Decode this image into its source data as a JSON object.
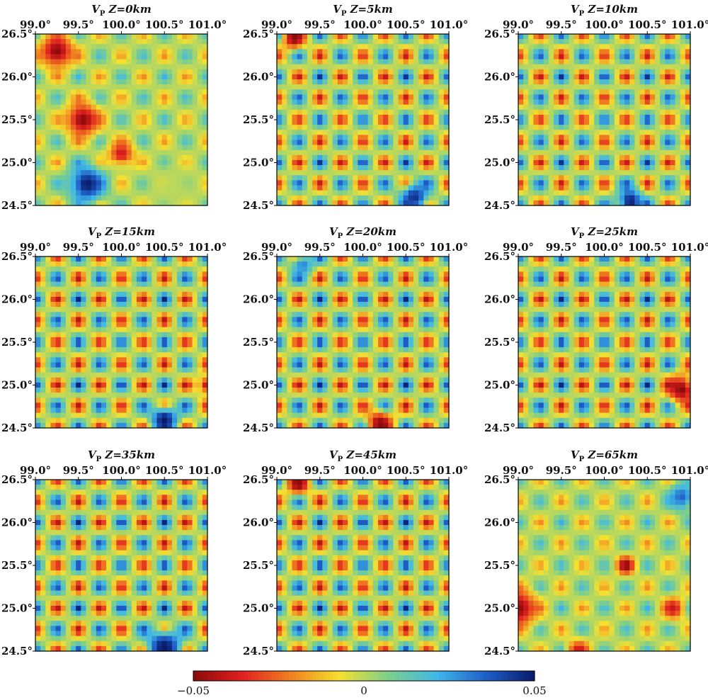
{
  "chart_data": {
    "type": "heatmap",
    "colorscale": [
      "#8b0a0a",
      "#e02020",
      "#f08020",
      "#f5e030",
      "#7ecf8a",
      "#3fb8e8",
      "#1f5fc8",
      "#0a1a6a"
    ],
    "x_tick_labels": [
      "99.0°",
      "99.5°",
      "100.0°",
      "100.5°",
      "101.0°"
    ],
    "y_tick_labels": [
      "26.5°",
      "26.0°",
      "25.5°",
      "25.0°",
      "24.5°"
    ],
    "xlim": [
      99.0,
      101.0
    ],
    "ylim": [
      24.5,
      26.5
    ],
    "colorbar": {
      "range": [
        -0.05,
        0.05
      ],
      "tick_labels": [
        "−0.05",
        "0",
        "0.05"
      ]
    },
    "panels": [
      {
        "title_v": "V",
        "title_sub": "P",
        "title_z": " Z=0km",
        "checker_strength": 0.45,
        "anomalies": [
          {
            "x": 99.25,
            "y": 26.3,
            "v": -1.0,
            "r": 0.18
          },
          {
            "x": 99.55,
            "y": 25.5,
            "v": -1.0,
            "r": 0.18
          },
          {
            "x": 100.0,
            "y": 25.1,
            "v": -0.8,
            "r": 0.14
          },
          {
            "x": 99.6,
            "y": 24.75,
            "v": 1.0,
            "r": 0.2
          },
          {
            "x": 100.6,
            "y": 24.7,
            "v": 0.0,
            "r": 0.35
          }
        ]
      },
      {
        "title_v": "V",
        "title_sub": "P",
        "title_z": " Z=5km",
        "checker_strength": 0.9,
        "anomalies": [
          {
            "x": 99.2,
            "y": 26.45,
            "v": -1.0,
            "r": 0.12
          },
          {
            "x": 100.6,
            "y": 24.6,
            "v": 0.9,
            "r": 0.16
          }
        ]
      },
      {
        "title_v": "V",
        "title_sub": "P",
        "title_z": " Z=10km",
        "checker_strength": 0.9,
        "anomalies": [
          {
            "x": 100.3,
            "y": 24.55,
            "v": 1.0,
            "r": 0.14
          }
        ]
      },
      {
        "title_v": "V",
        "title_sub": "P",
        "title_z": " Z=15km",
        "checker_strength": 0.95,
        "anomalies": [
          {
            "x": 100.5,
            "y": 24.6,
            "v": 1.0,
            "r": 0.15
          },
          {
            "x": 101.0,
            "y": 25.0,
            "v": -0.9,
            "r": 0.1
          }
        ]
      },
      {
        "title_v": "V",
        "title_sub": "P",
        "title_z": " Z=20km",
        "checker_strength": 0.95,
        "anomalies": [
          {
            "x": 100.2,
            "y": 24.55,
            "v": -1.0,
            "r": 0.14
          },
          {
            "x": 99.3,
            "y": 26.4,
            "v": 0.6,
            "r": 0.12
          }
        ]
      },
      {
        "title_v": "V",
        "title_sub": "P",
        "title_z": " Z=25km",
        "checker_strength": 0.95,
        "anomalies": [
          {
            "x": 100.9,
            "y": 24.95,
            "v": -1.0,
            "r": 0.16
          }
        ]
      },
      {
        "title_v": "V",
        "title_sub": "P",
        "title_z": " Z=35km",
        "checker_strength": 0.95,
        "anomalies": [
          {
            "x": 100.5,
            "y": 24.55,
            "v": 1.0,
            "r": 0.2
          }
        ]
      },
      {
        "title_v": "V",
        "title_sub": "P",
        "title_z": " Z=45km",
        "checker_strength": 0.95,
        "anomalies": [
          {
            "x": 99.25,
            "y": 26.45,
            "v": -1.0,
            "r": 0.12
          }
        ]
      },
      {
        "title_v": "V",
        "title_sub": "P",
        "title_z": " Z=65km",
        "checker_strength": 0.45,
        "anomalies": [
          {
            "x": 99.0,
            "y": 25.0,
            "v": -1.0,
            "r": 0.2
          },
          {
            "x": 100.25,
            "y": 25.5,
            "v": -1.0,
            "r": 0.1
          },
          {
            "x": 100.8,
            "y": 25.0,
            "v": -0.8,
            "r": 0.12
          },
          {
            "x": 99.7,
            "y": 24.5,
            "v": -0.8,
            "r": 0.12
          },
          {
            "x": 100.9,
            "y": 26.3,
            "v": 0.7,
            "r": 0.15
          }
        ]
      }
    ]
  }
}
